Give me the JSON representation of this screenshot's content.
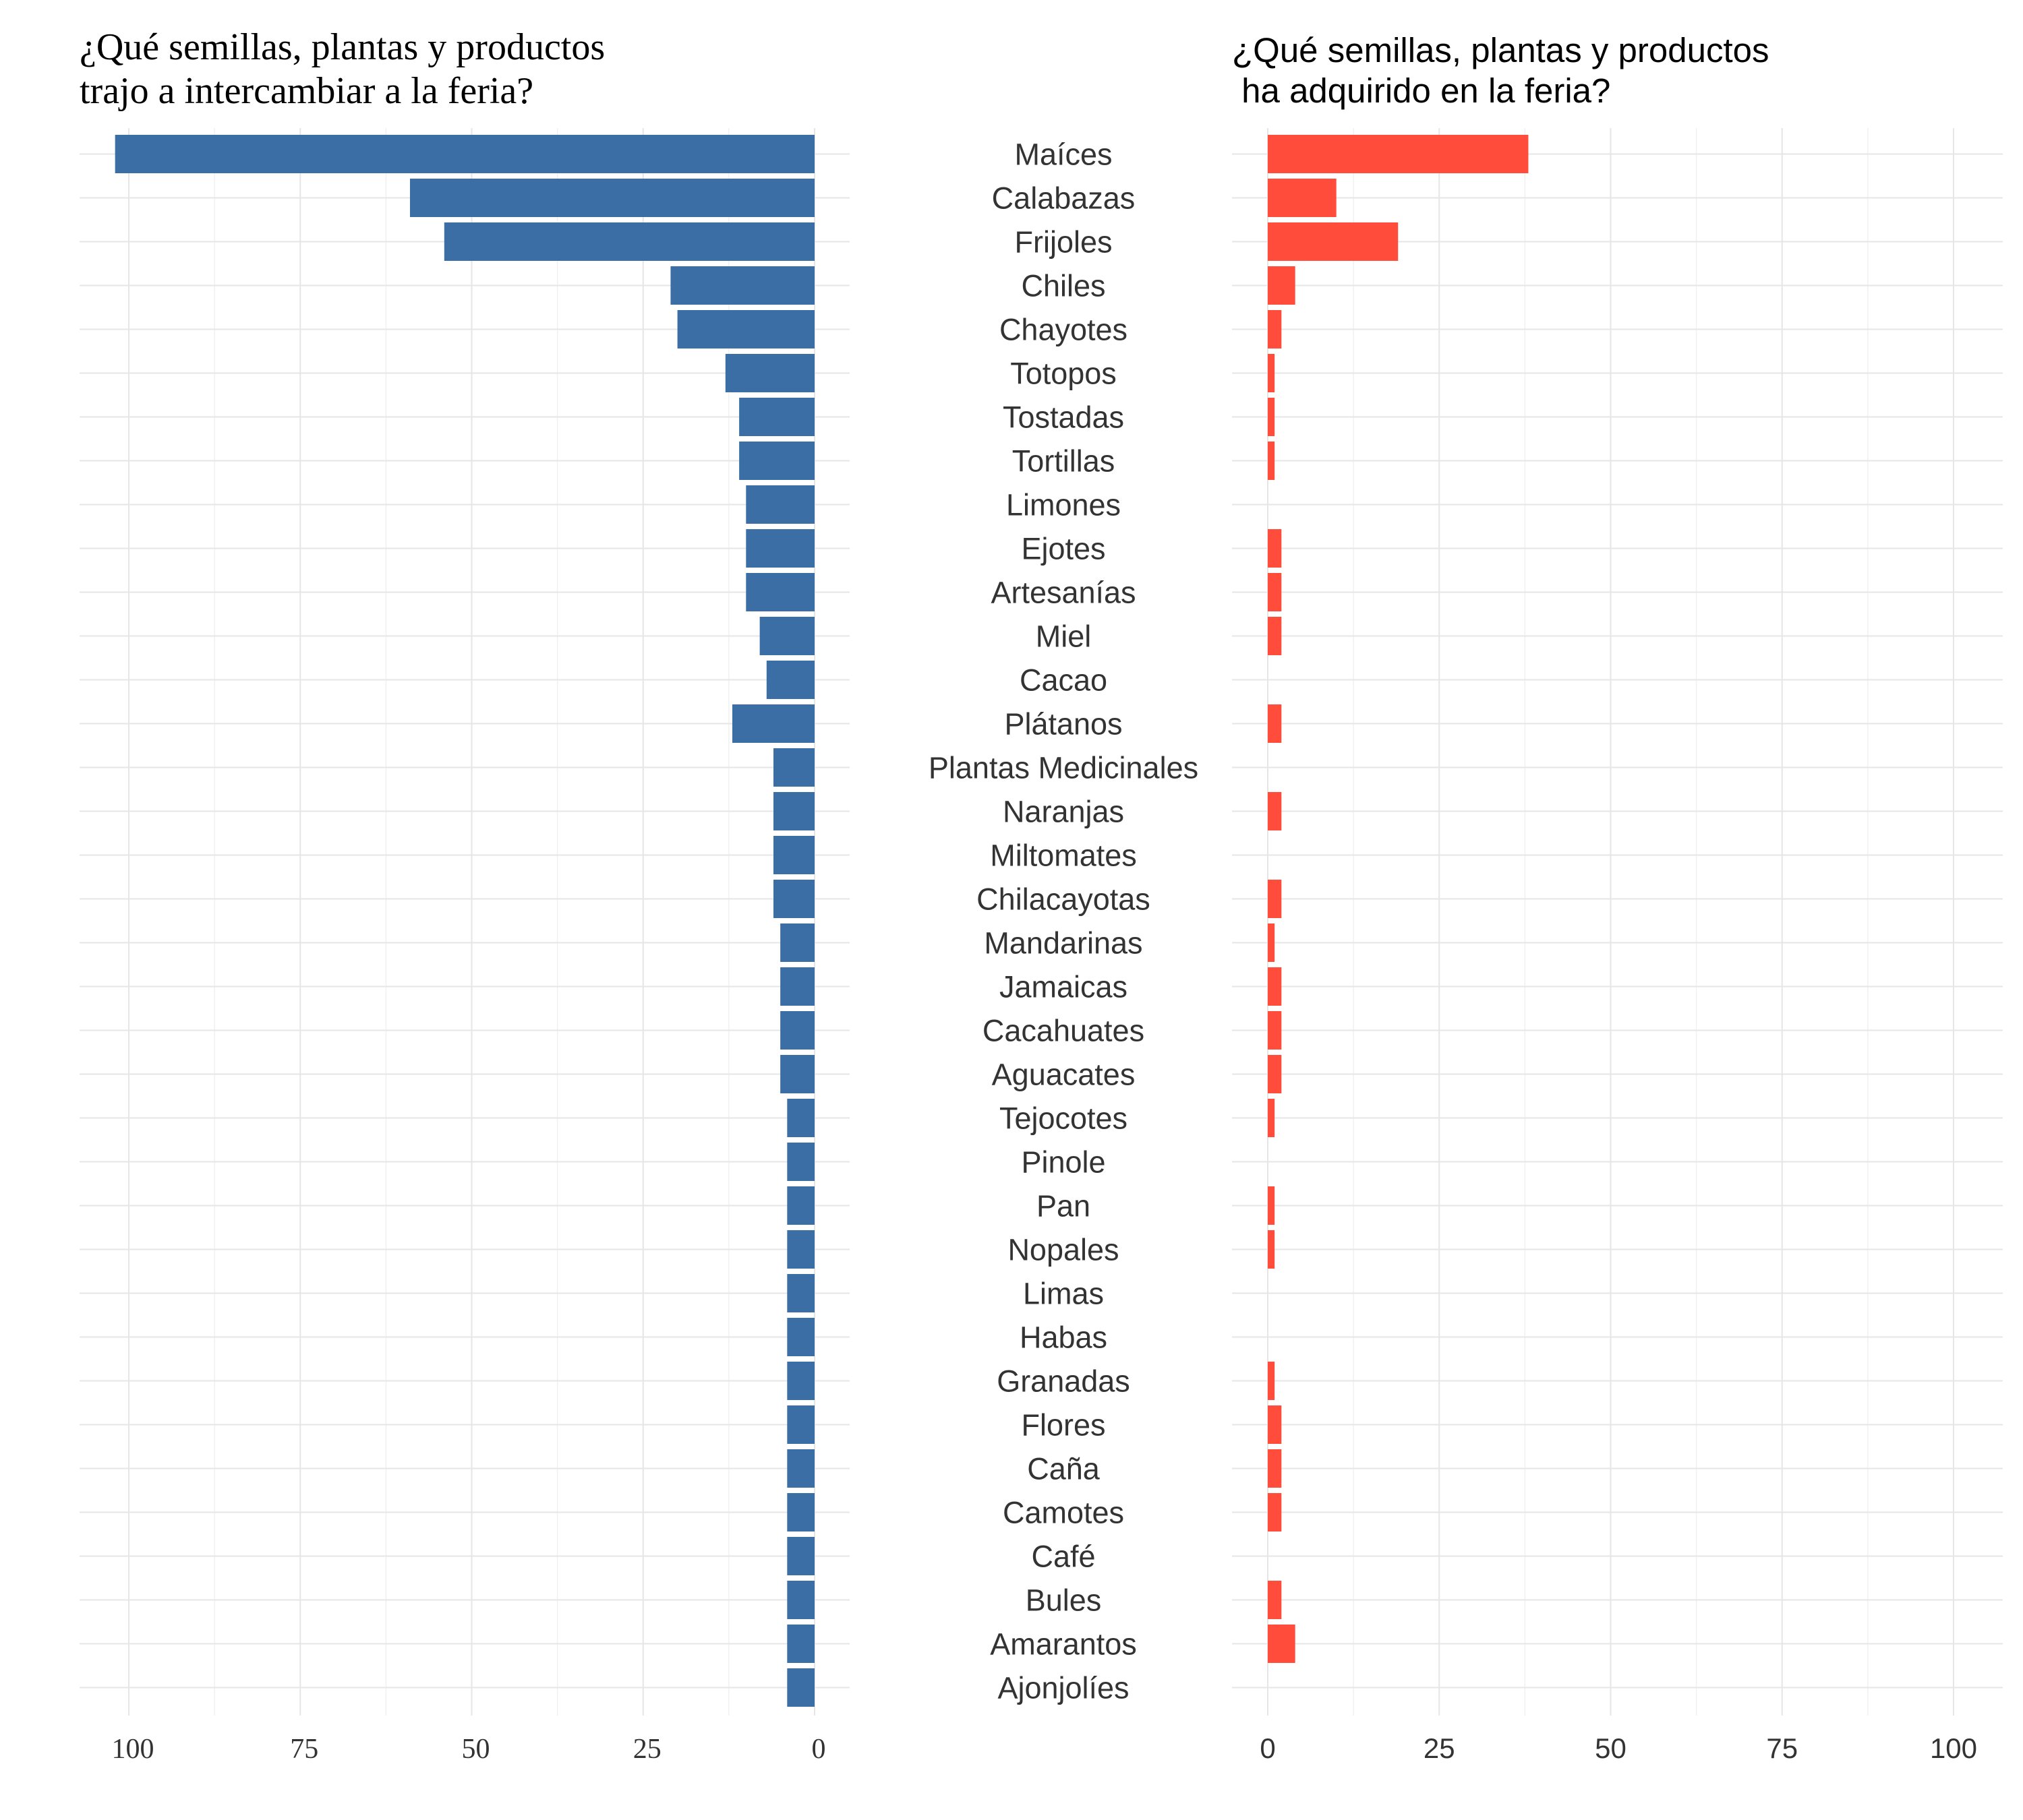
{
  "chart_data": [
    {
      "type": "bar",
      "orientation": "horizontal-reversed",
      "title_lines": [
        "¿Qué semillas, plantas y productos",
        "trajo a intercambiar a la feria?"
      ],
      "categories": [
        "Maíces",
        "Calabazas",
        "Frijoles",
        "Chiles",
        "Chayotes",
        "Totopos",
        "Tostadas",
        "Tortillas",
        "Limones",
        "Ejotes",
        "Artesanías",
        "Miel",
        "Cacao",
        "Plátanos",
        "Plantas Medicinales",
        "Naranjas",
        "Miltomates",
        "Chilacayotas",
        "Mandarinas",
        "Jamaicas",
        "Cacahuates",
        "Aguacates",
        "Tejocotes",
        "Pinole",
        "Pan",
        "Nopales",
        "Limas",
        "Habas",
        "Granadas",
        "Flores",
        "Caña",
        "Camotes",
        "Café",
        "Bules",
        "Amarantos",
        "Ajonjolíes"
      ],
      "values": [
        102,
        59,
        54,
        21,
        20,
        13,
        11,
        11,
        10,
        10,
        10,
        8,
        7,
        12,
        6,
        6,
        6,
        6,
        5,
        5,
        5,
        5,
        4,
        4,
        4,
        4,
        4,
        4,
        4,
        4,
        4,
        4,
        4,
        4,
        4,
        4
      ],
      "xlim": [
        0,
        105
      ],
      "ticks": [
        "100",
        "75",
        "50",
        "25",
        "0"
      ],
      "color": "#3a6ea5",
      "grid": true
    },
    {
      "type": "bar",
      "orientation": "horizontal",
      "title_lines": [
        "¿Qué semillas, plantas y productos",
        " ha adquirido en la feria?"
      ],
      "categories": [
        "Maíces",
        "Calabazas",
        "Frijoles",
        "Chiles",
        "Chayotes",
        "Totopos",
        "Tostadas",
        "Tortillas",
        "Limones",
        "Ejotes",
        "Artesanías",
        "Miel",
        "Cacao",
        "Plátanos",
        "Plantas Medicinales",
        "Naranjas",
        "Miltomates",
        "Chilacayotas",
        "Mandarinas",
        "Jamaicas",
        "Cacahuates",
        "Aguacates",
        "Tejocotes",
        "Pinole",
        "Pan",
        "Nopales",
        "Limas",
        "Habas",
        "Granadas",
        "Flores",
        "Caña",
        "Camotes",
        "Café",
        "Bules",
        "Amarantos",
        "Ajonjolíes"
      ],
      "values": [
        38,
        10,
        19,
        4,
        2,
        1,
        1,
        1,
        0,
        2,
        2,
        2,
        0,
        2,
        0,
        2,
        0,
        2,
        1,
        2,
        2,
        2,
        1,
        0,
        1,
        1,
        0,
        0,
        1,
        2,
        2,
        2,
        0,
        2,
        4,
        0
      ],
      "xlim": [
        0,
        105
      ],
      "ticks": [
        "0",
        "25",
        "50",
        "75",
        "100"
      ],
      "color": "#ff4c3b",
      "grid": true
    }
  ]
}
